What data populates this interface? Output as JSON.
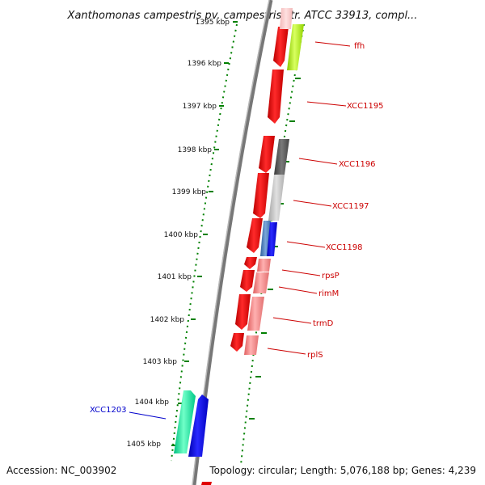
{
  "title": "Xanthomonas campestris pv. campestris str. ATCC 33913, compl...",
  "accession_text": "Accession: NC_003902",
  "summary_text": "Topology: circular; Length: 5,076,188 bp; Genes: 4,239",
  "colors": {
    "backbone": "#777777",
    "tick": "#008000",
    "tick_label": "#111111",
    "forward_label": "#cc0000",
    "reverse_label": "#0000cc",
    "label_line": "#cc0000"
  },
  "ruler": {
    "labels": [
      "1395 kbp",
      "1396 kbp",
      "1397 kbp",
      "1398 kbp",
      "1399 kbp",
      "1400 kbp",
      "1401 kbp",
      "1402 kbp",
      "1403 kbp",
      "1404 kbp",
      "1405 kbp"
    ]
  },
  "genes": [
    {
      "label": "ffh",
      "strand": "forward"
    },
    {
      "label": "XCC1195",
      "strand": "forward"
    },
    {
      "label": "XCC1196",
      "strand": "forward"
    },
    {
      "label": "XCC1197",
      "strand": "forward"
    },
    {
      "label": "XCC1198",
      "strand": "forward"
    },
    {
      "label": "rpsP",
      "strand": "forward"
    },
    {
      "label": "rimM",
      "strand": "forward"
    },
    {
      "label": "trmD",
      "strand": "forward"
    },
    {
      "label": "rplS",
      "strand": "forward"
    },
    {
      "label": "XCC1203",
      "strand": "reverse"
    }
  ]
}
